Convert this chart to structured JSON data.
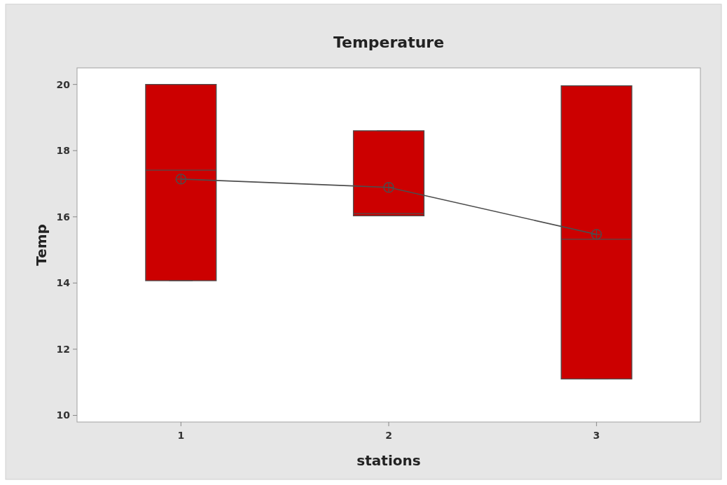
{
  "chart_data": {
    "type": "box",
    "title": "Temperature",
    "xlabel": "stations",
    "ylabel": "Temp",
    "categories": [
      "1",
      "2",
      "3"
    ],
    "ylim": [
      9.8,
      20.5
    ],
    "yticks": [
      10,
      12,
      14,
      16,
      18,
      20
    ],
    "grid": false,
    "series": [
      {
        "color": "#cc0000",
        "boxes": [
          {
            "low": 14.07,
            "q1": 14.07,
            "median": 17.41,
            "q3": 20.0,
            "high": 20.0
          },
          {
            "low": 16.03,
            "q1": 16.03,
            "median": 16.1,
            "q3": 18.6,
            "high": 18.6
          },
          {
            "low": 11.1,
            "q1": 11.1,
            "median": 15.32,
            "q3": 19.96,
            "high": 19.96
          }
        ]
      },
      {
        "type": "line",
        "color": "#4d4d4d",
        "marker": "circle",
        "values": [
          17.14,
          16.89,
          15.47
        ]
      }
    ]
  }
}
